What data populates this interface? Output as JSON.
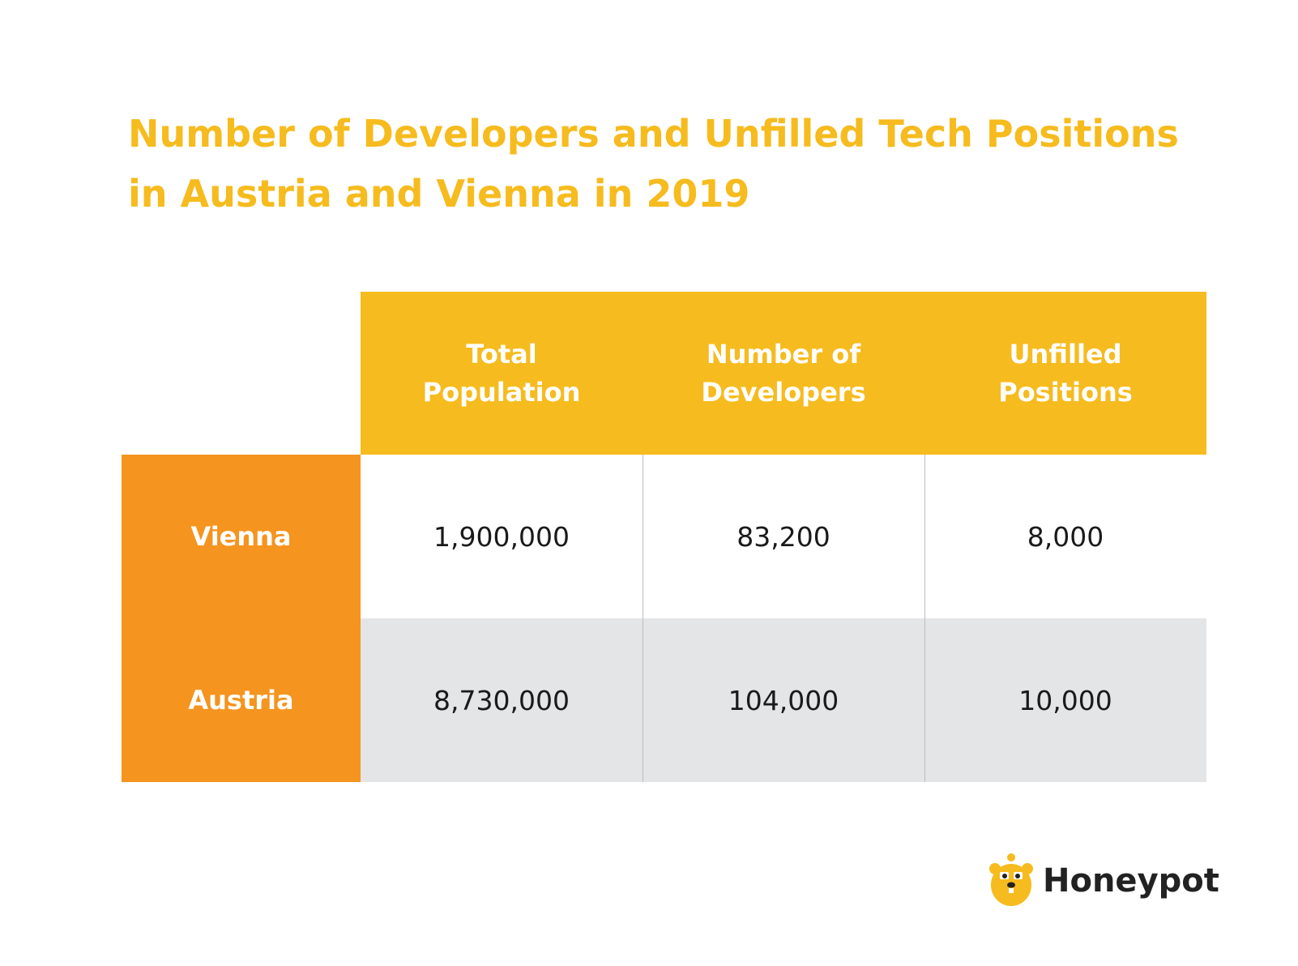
{
  "header": {
    "title": "Number of Developers and Unfilled Tech Positions in Austria and Vienna in 2019"
  },
  "table": {
    "columns": [
      "Total Population",
      "Number of Developers",
      "Unfilled Positions"
    ],
    "rows": [
      [
        "Vienna",
        "1,900,000",
        "83,200",
        "8,000"
      ],
      [
        "Austria",
        "8,730,000",
        "104,000",
        "10,000"
      ]
    ]
  },
  "footer": {
    "brand": "Honeypot"
  }
}
